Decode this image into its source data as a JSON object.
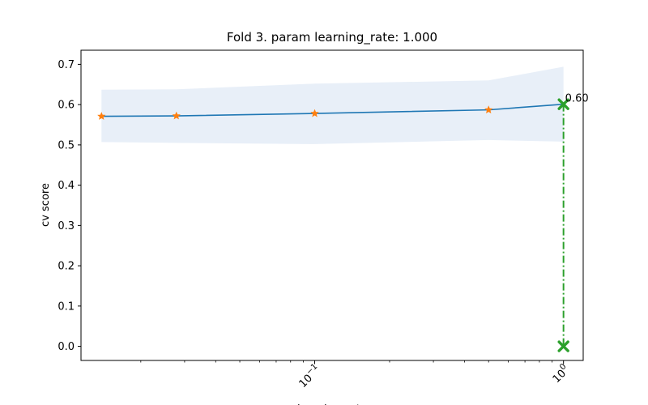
{
  "chart_data": {
    "type": "line",
    "title": "Fold 3. param learning_rate: 1.000",
    "xlabel": "learning_rate",
    "ylabel": "cv score",
    "x_scale": "log",
    "xlim": [
      0.0115,
      1.2
    ],
    "ylim": [
      -0.035,
      0.735
    ],
    "y_ticks": [
      0.0,
      0.1,
      0.2,
      0.3,
      0.4,
      0.5,
      0.6,
      0.7
    ],
    "y_tick_labels": [
      "0.0",
      "0.1",
      "0.2",
      "0.3",
      "0.4",
      "0.5",
      "0.6",
      "0.7"
    ],
    "x_ticks": [
      0.1,
      1.0
    ],
    "x_tick_labels": [
      {
        "base": "10",
        "exp": "−1"
      },
      {
        "base": "10",
        "exp": "0"
      }
    ],
    "grid": false,
    "series": [
      {
        "x": [
          0.0139,
          0.0278,
          0.1,
          0.5,
          1.0
        ],
        "values": [
          0.571,
          0.572,
          0.578,
          0.587,
          0.601
        ],
        "band_upper": [
          0.637,
          0.638,
          0.652,
          0.66,
          0.694
        ],
        "band_lower": [
          0.507,
          0.505,
          0.502,
          0.512,
          0.508
        ],
        "line_color": "#1f77b4",
        "marker_color": "#ff7f0e",
        "band_color": "#e8eff8"
      }
    ],
    "best": {
      "x": 1.0,
      "value": 0.601,
      "label": "0.60",
      "color": "#2ca02c"
    }
  }
}
